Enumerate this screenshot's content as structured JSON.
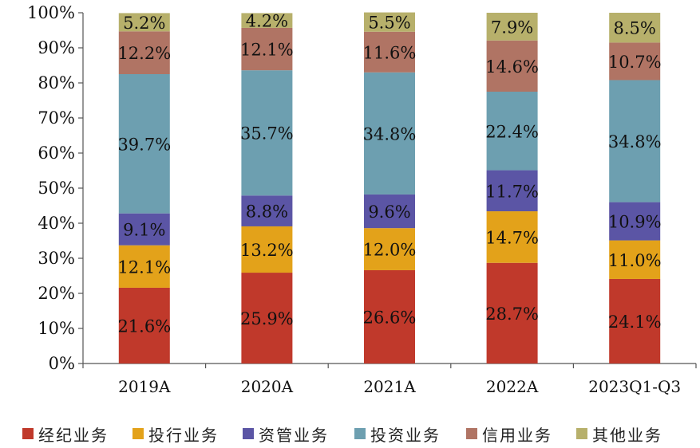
{
  "chart_data": {
    "type": "bar",
    "stacked": true,
    "percent": true,
    "categories": [
      "2019A",
      "2020A",
      "2021A",
      "2022A",
      "2023Q1-Q3"
    ],
    "ylim": [
      0,
      100
    ],
    "yticks": [
      "0%",
      "10%",
      "20%",
      "30%",
      "40%",
      "50%",
      "60%",
      "70%",
      "80%",
      "90%",
      "100%"
    ],
    "grid": false,
    "legend_position": "bottom",
    "series": [
      {
        "name": "经纪业务",
        "color": "#c0392b",
        "values": [
          21.6,
          25.9,
          26.6,
          28.7,
          24.1
        ],
        "labels": [
          "21.6%",
          "25.9%",
          "26.6%",
          "28.7%",
          "24.1%"
        ]
      },
      {
        "name": "投行业务",
        "color": "#e3a21a",
        "values": [
          12.1,
          13.2,
          12.0,
          14.7,
          11.0
        ],
        "labels": [
          "12.1%",
          "13.2%",
          "12.0%",
          "14.7%",
          "11.0%"
        ]
      },
      {
        "name": "资管业务",
        "color": "#5b55a5",
        "values": [
          9.1,
          8.8,
          9.6,
          11.7,
          10.9
        ],
        "labels": [
          "9.1%",
          "8.8%",
          "9.6%",
          "11.7%",
          "10.9%"
        ]
      },
      {
        "name": "投资业务",
        "color": "#6d9fb0",
        "values": [
          39.7,
          35.7,
          34.8,
          22.4,
          34.8
        ],
        "labels": [
          "39.7%",
          "35.7%",
          "34.8%",
          "22.4%",
          "34.8%"
        ]
      },
      {
        "name": "信用业务",
        "color": "#b07464",
        "values": [
          12.2,
          12.1,
          11.6,
          14.6,
          10.7
        ],
        "labels": [
          "12.2%",
          "12.1%",
          "11.6%",
          "14.6%",
          "10.7%"
        ]
      },
      {
        "name": "其他业务",
        "color": "#b7b06b",
        "values": [
          5.2,
          4.2,
          5.5,
          7.9,
          8.5
        ],
        "labels": [
          "5.2%",
          "4.2%",
          "5.5%",
          "7.9%",
          "8.5%"
        ]
      }
    ]
  }
}
